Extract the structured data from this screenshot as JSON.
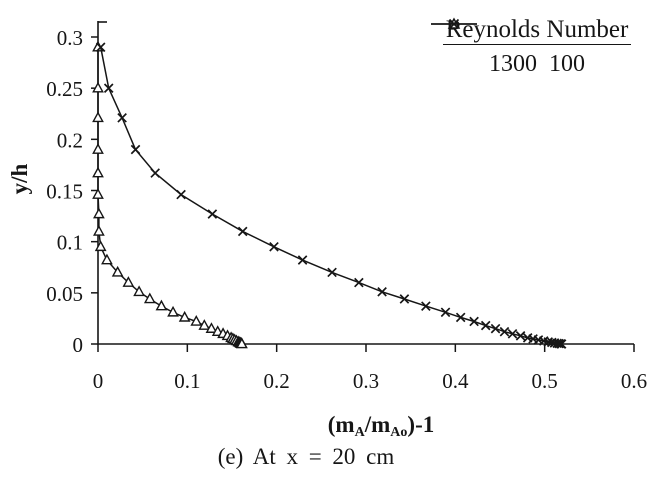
{
  "figure": {
    "caption": "(e) At x = 20 cm",
    "ink_color": "#161616",
    "background_color": "#ffffff"
  },
  "axes": {
    "y_label": "y/h",
    "x_label": {
      "p1": "(m",
      "s1": "A",
      "p2": "/m",
      "s2": "Ao",
      "p3": ")-1"
    },
    "x_ticks": [
      "0",
      "0.1",
      "0.2",
      "0.3",
      "0.4",
      "0.5",
      "0.6"
    ],
    "y_ticks": [
      "0",
      "0.05",
      "0.1",
      "0.15",
      "0.2",
      "0.25",
      "0.3"
    ]
  },
  "legend": {
    "title": "Reynolds Number",
    "entries": [
      {
        "label": "1300",
        "marker": "open-triangle"
      },
      {
        "label": "100",
        "marker": "x-cross"
      }
    ]
  },
  "chart_data": {
    "type": "line",
    "title": "",
    "xlabel": "(mA/mAo)-1",
    "ylabel": "y/h",
    "xlim": [
      0,
      0.6
    ],
    "ylim": [
      0,
      0.3
    ],
    "x_tick_labels": [
      "0",
      "0.1",
      "0.2",
      "0.3",
      "0.4",
      "0.5",
      "0.6"
    ],
    "y_tick_labels": [
      "0",
      "0.05",
      "0.1",
      "0.15",
      "0.2",
      "0.25",
      "0.3"
    ],
    "grid": false,
    "legend_title": "Reynolds Number",
    "legend_position": "top-right",
    "caption": "(e) At x = 20 cm",
    "series": [
      {
        "name": "1300",
        "marker": "triangle",
        "x": [
          0,
          0,
          0,
          0,
          0,
          0,
          0.001,
          0.001,
          0.003,
          0.01,
          0.022,
          0.034,
          0.046,
          0.058,
          0.071,
          0.084,
          0.097,
          0.11,
          0.119,
          0.127,
          0.134,
          0.14,
          0.145,
          0.149,
          0.151,
          0.153,
          0.155,
          0.157,
          0.158,
          0.159,
          0.16,
          0.16,
          0.161,
          0.161
        ],
        "y": [
          0.29,
          0.25,
          0.221,
          0.19,
          0.167,
          0.146,
          0.127,
          0.11,
          0.095,
          0.082,
          0.07,
          0.06,
          0.051,
          0.044,
          0.037,
          0.031,
          0.026,
          0.022,
          0.018,
          0.015,
          0.012,
          0.01,
          0.008,
          0.006,
          0.005,
          0.004,
          0.003,
          0.002,
          0.0015,
          0.001,
          0.0007,
          0.0004,
          0.0002,
          0
        ]
      },
      {
        "name": "100",
        "marker": "x",
        "x": [
          0.003,
          0.012,
          0.027,
          0.042,
          0.064,
          0.093,
          0.128,
          0.162,
          0.197,
          0.229,
          0.262,
          0.292,
          0.318,
          0.343,
          0.367,
          0.389,
          0.406,
          0.421,
          0.434,
          0.445,
          0.455,
          0.464,
          0.473,
          0.481,
          0.487,
          0.493,
          0.499,
          0.504,
          0.508,
          0.511,
          0.514,
          0.516,
          0.518,
          0.519
        ],
        "y": [
          0.29,
          0.25,
          0.221,
          0.19,
          0.167,
          0.146,
          0.127,
          0.11,
          0.095,
          0.082,
          0.07,
          0.06,
          0.051,
          0.044,
          0.037,
          0.031,
          0.026,
          0.022,
          0.018,
          0.015,
          0.012,
          0.01,
          0.008,
          0.006,
          0.005,
          0.004,
          0.003,
          0.002,
          0.0015,
          0.001,
          0.0007,
          0.0004,
          0.0002,
          0
        ]
      }
    ]
  }
}
